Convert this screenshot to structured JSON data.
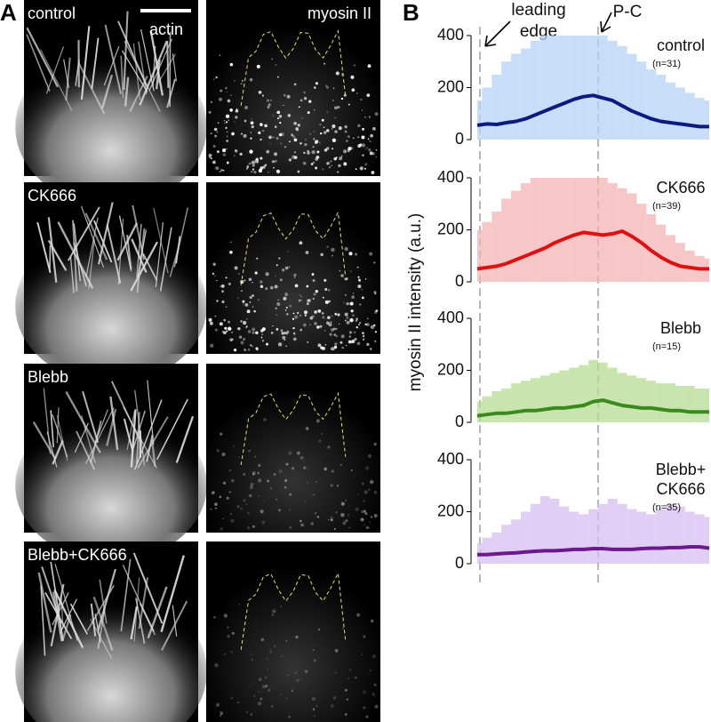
{
  "panel_a": {
    "label": "A",
    "scale_bar_label": "actin",
    "column_title": "myosin II",
    "row_labels": [
      "control",
      "CK666",
      "Blebb",
      "Blebb+CK666"
    ]
  },
  "panel_b": {
    "label": "B",
    "y_axis_label": "myosin II intensity (a.u.)",
    "annotations": [
      {
        "lines": [
          "leading",
          "edge"
        ]
      },
      {
        "lines": [
          "P-C"
        ]
      }
    ]
  },
  "chart_data": [
    {
      "type": "line",
      "title": [
        "control"
      ],
      "subtitle": "(n=31)",
      "ylim": [
        0,
        400
      ],
      "yticks": [
        0,
        200,
        400
      ],
      "series": [
        {
          "color": "#b5d3f5",
          "style": "band",
          "values": [
            150,
            200,
            250,
            300,
            330,
            350,
            380,
            400,
            400,
            400,
            400,
            400,
            400,
            400,
            380,
            360,
            330,
            300,
            270,
            250,
            220,
            200,
            180,
            160,
            150
          ]
        },
        {
          "color": "#0d1a80",
          "style": "line",
          "values": [
            55,
            60,
            58,
            65,
            70,
            80,
            95,
            110,
            125,
            140,
            155,
            165,
            170,
            160,
            150,
            130,
            110,
            95,
            80,
            70,
            65,
            60,
            55,
            50,
            50
          ]
        }
      ]
    },
    {
      "type": "line",
      "title": [
        "CK666"
      ],
      "subtitle": "(n=39)",
      "ylim": [
        0,
        400
      ],
      "yticks": [
        0,
        200,
        400
      ],
      "series": [
        {
          "color": "#f4b3b3",
          "style": "band",
          "values": [
            200,
            230,
            270,
            320,
            350,
            380,
            400,
            400,
            400,
            400,
            400,
            400,
            400,
            400,
            380,
            360,
            340,
            300,
            260,
            220,
            180,
            150,
            120,
            100,
            90
          ]
        },
        {
          "color": "#e01010",
          "style": "line",
          "values": [
            50,
            55,
            60,
            70,
            85,
            100,
            115,
            130,
            150,
            165,
            180,
            190,
            185,
            180,
            185,
            195,
            175,
            150,
            120,
            95,
            75,
            60,
            55,
            50,
            50
          ]
        }
      ]
    },
    {
      "type": "line",
      "title": [
        "Blebb"
      ],
      "subtitle": "(n=15)",
      "ylim": [
        0,
        400
      ],
      "yticks": [
        0,
        200,
        400
      ],
      "series": [
        {
          "color": "#b6dc93",
          "style": "band",
          "values": [
            80,
            100,
            120,
            130,
            150,
            160,
            170,
            180,
            190,
            200,
            210,
            220,
            240,
            230,
            210,
            190,
            180,
            170,
            160,
            150,
            150,
            140,
            140,
            130,
            130
          ]
        },
        {
          "color": "#3a8a1e",
          "style": "line",
          "values": [
            25,
            30,
            35,
            35,
            40,
            45,
            45,
            50,
            55,
            55,
            60,
            65,
            80,
            85,
            75,
            65,
            60,
            55,
            55,
            50,
            45,
            45,
            40,
            40,
            40
          ]
        }
      ]
    },
    {
      "type": "line",
      "title": [
        "Blebb+",
        "CK666"
      ],
      "subtitle": "(n=35)",
      "ylim": [
        0,
        400
      ],
      "yticks": [
        0,
        200,
        400
      ],
      "series": [
        {
          "color": "#d6bdf0",
          "style": "band",
          "values": [
            80,
            100,
            120,
            150,
            170,
            200,
            230,
            260,
            250,
            220,
            200,
            190,
            210,
            230,
            250,
            230,
            210,
            200,
            190,
            210,
            230,
            220,
            200,
            190,
            180
          ]
        },
        {
          "color": "#6a1a8a",
          "style": "line",
          "values": [
            35,
            35,
            38,
            40,
            42,
            45,
            48,
            50,
            50,
            52,
            55,
            55,
            58,
            58,
            55,
            55,
            55,
            58,
            60,
            60,
            62,
            62,
            65,
            65,
            60
          ]
        }
      ]
    }
  ]
}
